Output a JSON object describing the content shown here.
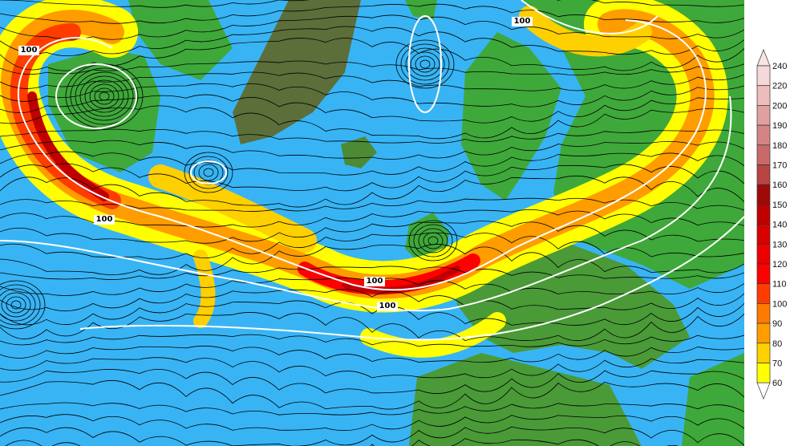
{
  "map": {
    "isotach_labels": [
      "100",
      "100",
      "100",
      "100",
      "100"
    ],
    "colors": {
      "ocean": "#38b4f4",
      "land_low": "#3fa83a",
      "land_high": "#5c6e3a",
      "isotach": "#ffffff",
      "streamline": "#000000"
    }
  },
  "colorbar": {
    "labels": [
      "240",
      "220",
      "200",
      "190",
      "180",
      "170",
      "160",
      "150",
      "140",
      "130",
      "120",
      "110",
      "100",
      "90",
      "80",
      "70",
      "60"
    ],
    "colors": [
      "#f6d8d8",
      "#eebcbc",
      "#e0a0a0",
      "#d48484",
      "#c86a6a",
      "#b84444",
      "#9e0a0a",
      "#c00000",
      "#d80000",
      "#ec0000",
      "#ff0000",
      "#ff3c00",
      "#ff7a00",
      "#ff9c00",
      "#ffd000",
      "#ffff00"
    ],
    "top_arrow_color": "#f8e4e4",
    "bottom_arrow_color": "#ffffff"
  }
}
